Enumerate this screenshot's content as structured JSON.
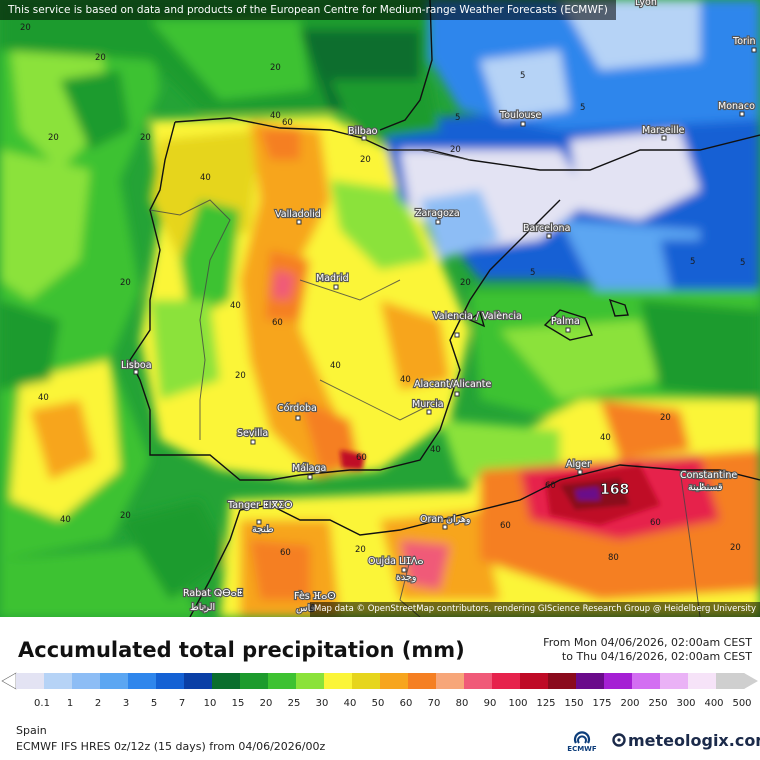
{
  "attribution_top": "This service is based on data and products of the European Centre for Medium-range Weather Forecasts (ECMWF)",
  "attribution_map": "Map data © OpenStreetMap contributors, rendering GIScience Research Group @ Heidelberg University",
  "title": "Accumulated total precipitation (mm)",
  "period_from": "From Mon 04/06/2026, 02:00am CEST",
  "period_to": "to Thu 04/16/2026, 02:00am CEST",
  "region": "Spain",
  "model_info": "ECMWF IFS HRES 0z/12z (15 days) from 04/06/2026/00z",
  "brand": "meteologix.com",
  "ecmwf_logo": "ECMWF",
  "legend": {
    "unit": "mm",
    "bins": [
      {
        "label": "0.1",
        "color": "#e3e3f3"
      },
      {
        "label": "1",
        "color": "#b6d3f6"
      },
      {
        "label": "2",
        "color": "#8dbdf5"
      },
      {
        "label": "3",
        "color": "#5ba6f2"
      },
      {
        "label": "5",
        "color": "#2f86ec"
      },
      {
        "label": "7",
        "color": "#1461d4"
      },
      {
        "label": "10",
        "color": "#0a3fa6"
      },
      {
        "label": "15",
        "color": "#0a6e2e"
      },
      {
        "label": "20",
        "color": "#1d9b2d"
      },
      {
        "label": "25",
        "color": "#3ec232"
      },
      {
        "label": "30",
        "color": "#8be23a"
      },
      {
        "label": "40",
        "color": "#fbf538"
      },
      {
        "label": "50",
        "color": "#e6d51d"
      },
      {
        "label": "60",
        "color": "#f7a51e"
      },
      {
        "label": "70",
        "color": "#f57f22"
      },
      {
        "label": "80",
        "color": "#f7a679"
      },
      {
        "label": "90",
        "color": "#f05a78"
      },
      {
        "label": "100",
        "color": "#e6224c"
      },
      {
        "label": "125",
        "color": "#bf0a26"
      },
      {
        "label": "150",
        "color": "#8a0a1c"
      },
      {
        "label": "175",
        "color": "#6a0a8a"
      },
      {
        "label": "200",
        "color": "#a51fd4"
      },
      {
        "label": "250",
        "color": "#d36ef2"
      },
      {
        "label": "300",
        "color": "#eab2f6"
      },
      {
        "label": "400",
        "color": "#f6e3f8"
      },
      {
        "label": "500",
        "color": "#cfcfcf"
      }
    ]
  },
  "cities": [
    {
      "name": "Lyon"
    },
    {
      "name": "Torin"
    },
    {
      "name": "Monaco"
    },
    {
      "name": "Toulouse"
    },
    {
      "name": "Marseille"
    },
    {
      "name": "Bilbao"
    },
    {
      "name": "Zaragoza"
    },
    {
      "name": "Barcelona"
    },
    {
      "name": "Valladolid"
    },
    {
      "name": "Madrid"
    },
    {
      "name": "Palma"
    },
    {
      "name": "Valencia / València"
    },
    {
      "name": "Lisboa"
    },
    {
      "name": "Alacant/Alicante"
    },
    {
      "name": "Córdoba"
    },
    {
      "name": "Murcia"
    },
    {
      "name": "Sevilla"
    },
    {
      "name": "Málaga"
    },
    {
      "name": "Alger"
    },
    {
      "name": "Constantine"
    },
    {
      "name": "قسنطينة"
    },
    {
      "name": "Tanger ⵟⵏⴳⵉⵔ"
    },
    {
      "name": "طنجة"
    },
    {
      "name": "Oran"
    },
    {
      "name": "وهران"
    },
    {
      "name": "Oujda ⵡⵊⴷⴰ"
    },
    {
      "name": "وجدة"
    },
    {
      "name": "Rabat ⵕⴱⴰⵟ"
    },
    {
      "name": "الرباط"
    },
    {
      "name": "Fès ⴼⴰⵙ"
    },
    {
      "name": "فاس"
    }
  ],
  "contour_labels": [
    "5",
    "20",
    "40",
    "60",
    "168"
  ]
}
